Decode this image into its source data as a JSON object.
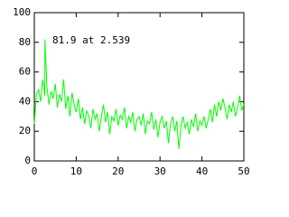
{
  "chart_data": {
    "type": "line",
    "annotation": "81.9 at 2.539",
    "x": [
      0,
      0.5,
      1,
      1.5,
      2,
      2.5,
      2.539,
      3,
      3.5,
      4,
      4.5,
      5,
      5.5,
      6,
      6.5,
      7,
      7.5,
      8,
      8.5,
      9,
      9.5,
      10,
      10.5,
      11,
      11.5,
      12,
      12.5,
      13,
      13.5,
      14,
      14.5,
      15,
      15.5,
      16,
      16.5,
      17,
      17.5,
      18,
      18.5,
      19,
      19.5,
      20,
      20.5,
      21,
      21.5,
      22,
      22.5,
      23,
      23.5,
      24,
      24.5,
      25,
      25.5,
      26,
      26.5,
      27,
      27.5,
      28,
      28.5,
      29,
      29.5,
      30,
      30.5,
      31,
      31.5,
      32,
      32.5,
      33,
      33.5,
      34,
      34.5,
      35,
      35.5,
      36,
      36.5,
      37,
      37.5,
      38,
      38.5,
      39,
      39.5,
      40,
      40.5,
      41,
      41.5,
      42,
      42.5,
      43,
      43.5,
      44,
      44.5,
      45,
      45.5,
      46,
      46.5,
      47,
      47.5,
      48,
      48.5,
      49,
      49.5,
      50
    ],
    "series": [
      {
        "color": "#00ff00",
        "values": [
          25,
          45,
          48,
          40,
          55,
          44,
          81.9,
          50,
          38,
          47,
          42,
          52,
          36,
          45,
          40,
          55,
          35,
          44,
          30,
          46,
          38,
          33,
          42,
          28,
          36,
          25,
          34,
          30,
          22,
          35,
          28,
          32,
          20,
          30,
          38,
          26,
          33,
          18,
          30,
          27,
          35,
          24,
          31,
          28,
          36,
          22,
          30,
          26,
          33,
          20,
          28,
          30,
          24,
          32,
          18,
          27,
          25,
          33,
          21,
          28,
          16,
          26,
          30,
          22,
          27,
          12,
          25,
          30,
          20,
          27,
          8,
          24,
          30,
          22,
          26,
          18,
          28,
          23,
          32,
          20,
          27,
          24,
          30,
          22,
          28,
          35,
          26,
          38,
          30,
          40,
          34,
          42,
          36,
          28,
          38,
          33,
          40,
          30,
          36,
          44,
          34,
          38
        ]
      }
    ],
    "xlim": [
      0,
      50
    ],
    "ylim": [
      0,
      100
    ],
    "xticks": [
      0,
      10,
      20,
      30,
      40,
      50
    ],
    "yticks": [
      0,
      20,
      40,
      60,
      80,
      100
    ]
  }
}
